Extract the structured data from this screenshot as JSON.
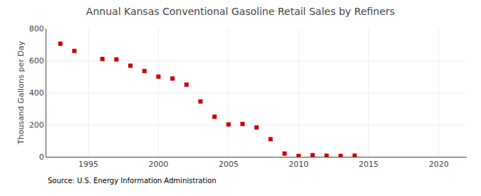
{
  "chart_data": {
    "type": "scatter",
    "title": "Annual Kansas Conventional Gasoline Retail Sales by Refiners",
    "ylabel": "Thousand Gallons per Day",
    "annotations": [
      "Source: U.S. Energy Information Administration"
    ],
    "x": [
      1993,
      1994,
      1996,
      1997,
      1998,
      1999,
      2000,
      2001,
      2002,
      2003,
      2004,
      2005,
      2006,
      2007,
      2008,
      2009,
      2010,
      2011,
      2012,
      2013,
      2014
    ],
    "values": [
      705,
      660,
      610,
      607,
      568,
      535,
      500,
      488,
      450,
      345,
      250,
      202,
      205,
      183,
      110,
      20,
      5,
      10,
      7,
      5,
      7
    ],
    "color": "#cc0000",
    "marker": "square",
    "xlim": [
      1992,
      2022
    ],
    "ylim": [
      0,
      800
    ],
    "xticks": [
      1995,
      2000,
      2005,
      2010,
      2015,
      2020
    ],
    "yticks": [
      0,
      200,
      400,
      600,
      800
    ],
    "grid": true
  }
}
